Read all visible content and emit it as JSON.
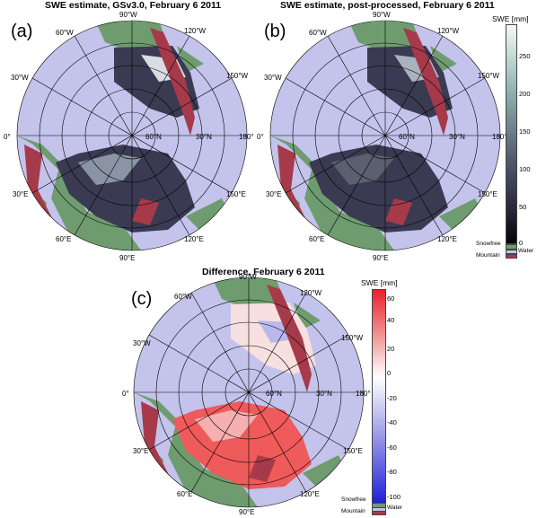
{
  "panels": {
    "a": {
      "label": "(a)",
      "title": "SWE estimate, GSv3.0, February 6 2011"
    },
    "b": {
      "label": "(b)",
      "title": "SWE estimate, post-processed, February 6 2011"
    },
    "c": {
      "label": "(c)",
      "title": "Difference, February 6 2011"
    }
  },
  "longitude_labels": {
    "lon_90w": "90°W",
    "lon_120w": "120°W",
    "lon_60w": "60°W",
    "lon_150w": "150°W",
    "lon_30w": "30°W",
    "lon_180": "180°",
    "lon_0": "0°",
    "lon_30e": "30°E",
    "lon_150e": "150°E",
    "lon_60e": "60°E",
    "lon_120e": "120°E",
    "lon_90e": "90°E"
  },
  "latitude_labels": {
    "lat_60": "60°N",
    "lat_30": "30°N"
  },
  "colorbar_swe": {
    "title": "SWE [mm]",
    "ticks": [
      "250",
      "200",
      "150",
      "100",
      "50",
      "0"
    ],
    "snowfree": "Snowfree",
    "water": "Water",
    "mountain": "Mountain",
    "gradient": [
      "#f4f8f8",
      "#8fb4b0",
      "#565d73",
      "#262637",
      "#050508"
    ]
  },
  "colorbar_diff": {
    "title": "SWE [mm]",
    "ticks": [
      "60",
      "40",
      "20",
      "0",
      "-20",
      "-40",
      "-60",
      "-80",
      "-100"
    ],
    "snowfree": "Snowfree",
    "water": "Water",
    "mountain": "Mountain",
    "gradient": [
      "#e8202a",
      "#f3a8a8",
      "#ffffff",
      "#a8a8ea",
      "#2020d8"
    ]
  },
  "colors": {
    "ocean": "#c3c3ec",
    "snowfree": "#6f9c6e",
    "mountain": "#a63a4a",
    "swe_dark": "#3a3a52",
    "swe_light": "#d8dde2",
    "diff_red": "#ef5a5a"
  }
}
